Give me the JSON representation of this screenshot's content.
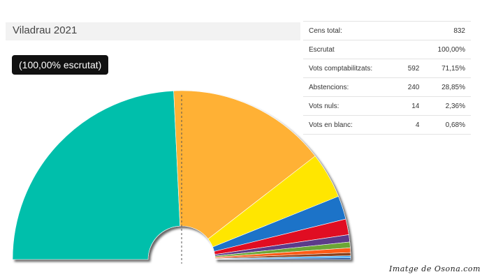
{
  "header": {
    "title": "Viladrau 2021"
  },
  "badge": {
    "label": "(100,00% escrutat)"
  },
  "stats": {
    "rows": [
      {
        "label": "Cens total:",
        "count": "",
        "percent": "832"
      },
      {
        "label": "Escrutat",
        "count": "",
        "percent": "100,00%"
      },
      {
        "label": "Vots comptabilitzats:",
        "count": "592",
        "percent": "71,15%"
      },
      {
        "label": "Abstencions:",
        "count": "240",
        "percent": "28,85%"
      },
      {
        "label": "Vots nuls:",
        "count": "14",
        "percent": "2,36%"
      },
      {
        "label": "Vots en blanc:",
        "count": "4",
        "percent": "0,68%"
      }
    ]
  },
  "chart_data": {
    "type": "pie",
    "values": [
      48.5,
      30.5,
      8.8,
      4.5,
      3.0,
      1.4,
      1.1,
      0.9,
      0.6,
      0.4,
      0.3
    ],
    "colors": [
      "#03bfab",
      "#ffb134",
      "#ffe600",
      "#1a73c8",
      "#e01020",
      "#5b3b8a",
      "#6ca634",
      "#ff5a14",
      "#8a3f1b",
      "#3fa9f5",
      "#0a3d91"
    ],
    "majority_line": true
  },
  "footer": {
    "credit": "Imatge de Osona.com"
  }
}
